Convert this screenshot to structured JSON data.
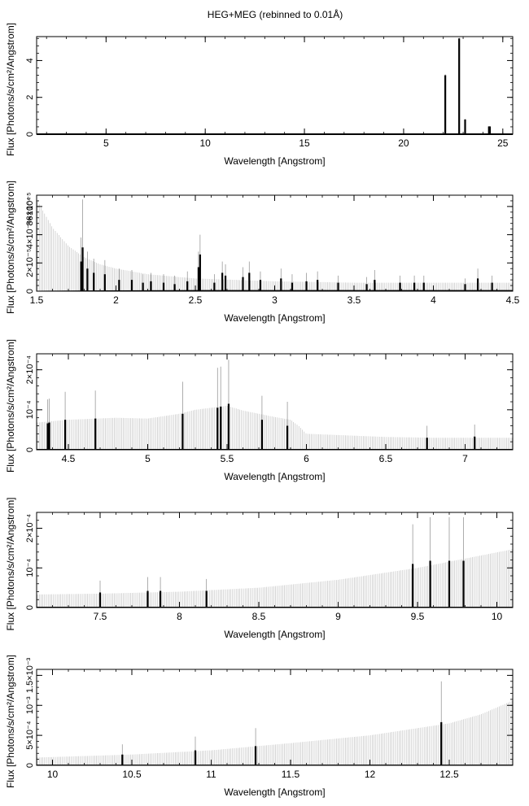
{
  "figure": {
    "title": "HEG+MEG (rebinned to 0.01Å)"
  },
  "chart_data": [
    {
      "type": "line",
      "xlabel": "Wavelength [Angstrom]",
      "ylabel": "Flux [Photons/s/cm²/Angstrom]",
      "xlim": [
        1.5,
        25.5
      ],
      "ylim": [
        0,
        5.3
      ],
      "xticks": [
        5,
        10,
        15,
        20,
        25
      ],
      "xtick_labels": [
        "5",
        "10",
        "15",
        "20",
        "25"
      ],
      "yticks": [
        0,
        2,
        4
      ],
      "ytick_labels": [
        "0",
        "2",
        "4"
      ],
      "continuum": {
        "x": [
          1.5,
          25.5
        ],
        "y": [
          0.0,
          0.0
        ]
      },
      "lines": [
        {
          "x": 22.1,
          "y": 3.2,
          "err": 0.05
        },
        {
          "x": 22.8,
          "y": 5.2,
          "err": 0.05
        },
        {
          "x": 23.1,
          "y": 0.8,
          "err": 0.03
        },
        {
          "x": 24.3,
          "y": 0.42,
          "err": 0.02
        },
        {
          "x": 24.35,
          "y": 0.42,
          "err": 0.02
        }
      ],
      "error_band": false
    },
    {
      "type": "line",
      "xlabel": "Wavelength [Angstrom]",
      "ylabel": "Flux [Photons/s/cm²/Angstrom]",
      "xlim": [
        1.5,
        4.5
      ],
      "ylim": [
        0,
        6.8e-05
      ],
      "xticks": [
        1.5,
        2,
        2.5,
        3,
        3.5,
        4,
        4.5
      ],
      "xtick_labels": [
        "1.5",
        "2",
        "2.5",
        "3",
        "3.5",
        "4",
        "4.5"
      ],
      "yticks": [
        0,
        2e-05,
        4e-05,
        6e-05
      ],
      "ytick_labels": [
        "0",
        "2×10⁻⁵",
        "4×10⁻⁵",
        "6×10⁻⁵"
      ],
      "ytick_label_overlay": "8×10⁻⁴",
      "continuum": {
        "x": [
          1.5,
          1.8,
          2.0,
          2.5,
          3.0,
          3.5,
          4.0,
          4.5
        ],
        "y": [
          0.0,
          2e-07,
          3e-07,
          5e-07,
          5e-07,
          5e-07,
          5e-07,
          5e-07
        ]
      },
      "errorband": {
        "x": [
          1.5,
          1.55,
          1.6,
          1.7,
          1.8,
          1.9,
          2.0,
          2.2,
          2.5,
          3.0,
          3.5,
          4.0,
          4.5
        ],
        "y": [
          6.5e-05,
          5.5e-05,
          4.5e-05,
          3.2e-05,
          2.4e-05,
          1.9e-05,
          1.6e-05,
          1.2e-05,
          9e-06,
          7e-06,
          6e-06,
          6e-06,
          6e-06
        ]
      },
      "lines": [
        {
          "x": 1.78,
          "y": 2.1e-05,
          "err": 1.7e-05
        },
        {
          "x": 1.79,
          "y": 3.1e-05,
          "err": 3.4e-05
        },
        {
          "x": 1.82,
          "y": 1.6e-05,
          "err": 1.2e-05
        },
        {
          "x": 1.86,
          "y": 1.3e-05,
          "err": 1e-05
        },
        {
          "x": 1.93,
          "y": 1.2e-05,
          "err": 1e-05
        },
        {
          "x": 2.02,
          "y": 8e-06,
          "err": 8e-06
        },
        {
          "x": 2.1,
          "y": 8e-06,
          "err": 7e-06
        },
        {
          "x": 2.17,
          "y": 6e-06,
          "err": 6e-06
        },
        {
          "x": 2.22,
          "y": 7e-06,
          "err": 6e-06
        },
        {
          "x": 2.3,
          "y": 6e-06,
          "err": 6e-06
        },
        {
          "x": 2.37,
          "y": 5e-06,
          "err": 6e-06
        },
        {
          "x": 2.45,
          "y": 7e-06,
          "err": 7e-06
        },
        {
          "x": 2.52,
          "y": 1.7e-05,
          "err": 1.1e-05
        },
        {
          "x": 2.53,
          "y": 2.6e-05,
          "err": 1.4e-05
        },
        {
          "x": 2.62,
          "y": 6e-06,
          "err": 6e-06
        },
        {
          "x": 2.67,
          "y": 1.3e-05,
          "err": 8e-06
        },
        {
          "x": 2.69,
          "y": 1.1e-05,
          "err": 8e-06
        },
        {
          "x": 2.8,
          "y": 1e-05,
          "err": 7e-06
        },
        {
          "x": 2.84,
          "y": 1.3e-05,
          "err": 8e-06
        },
        {
          "x": 2.91,
          "y": 8e-06,
          "err": 6e-06
        },
        {
          "x": 3.04,
          "y": 9e-06,
          "err": 7e-06
        },
        {
          "x": 3.11,
          "y": 6e-06,
          "err": 6e-06
        },
        {
          "x": 3.2,
          "y": 7e-06,
          "err": 6e-06
        },
        {
          "x": 3.27,
          "y": 8e-06,
          "err": 6e-06
        },
        {
          "x": 3.4,
          "y": 6e-06,
          "err": 5e-06
        },
        {
          "x": 3.58,
          "y": 5e-06,
          "err": 5e-06
        },
        {
          "x": 3.63,
          "y": 8e-06,
          "err": 7e-06
        },
        {
          "x": 3.79,
          "y": 6e-06,
          "err": 5e-06
        },
        {
          "x": 3.88,
          "y": 6e-06,
          "err": 5e-06
        },
        {
          "x": 3.94,
          "y": 6e-06,
          "err": 5e-06
        },
        {
          "x": 4.2,
          "y": 5e-06,
          "err": 4e-06
        },
        {
          "x": 4.28,
          "y": 9e-06,
          "err": 7e-06
        },
        {
          "x": 4.37,
          "y": 6e-06,
          "err": 5e-06
        }
      ],
      "error_band": true
    },
    {
      "type": "line",
      "xlabel": "Wavelength [Angstrom]",
      "ylabel": "Flux [Photons/s/cm²/Angstrom]",
      "xlim": [
        4.3,
        7.3
      ],
      "ylim": [
        0,
        0.00024
      ],
      "xticks": [
        4.5,
        5,
        5.5,
        6,
        6.5,
        7
      ],
      "xtick_labels": [
        "4.5",
        "5",
        "5.5",
        "6",
        "6.5",
        "7"
      ],
      "yticks": [
        0,
        0.0001,
        0.0002
      ],
      "ytick_labels": [
        "0",
        "10⁻⁴",
        "2×10⁻⁴"
      ],
      "continuum": {
        "x": [
          4.3,
          7.3
        ],
        "y": [
          1e-06,
          1e-06
        ]
      },
      "errorband": {
        "x": [
          4.3,
          4.5,
          4.8,
          5.0,
          5.2,
          5.3,
          5.4,
          5.5,
          5.6,
          5.8,
          5.9,
          5.95,
          6.0,
          6.5,
          6.8,
          7.0,
          7.3
        ],
        "y": [
          6.8e-05,
          7.5e-05,
          8e-05,
          7.8e-05,
          9e-05,
          0.0001,
          0.000105,
          0.00011,
          9.8e-05,
          8.2e-05,
          7.5e-05,
          6e-05,
          4e-05,
          3.2e-05,
          3e-05,
          3e-05,
          3e-05
        ]
      },
      "lines": [
        {
          "x": 4.37,
          "y": 6.6e-05,
          "err": 6e-05
        },
        {
          "x": 4.38,
          "y": 6.8e-05,
          "err": 6e-05
        },
        {
          "x": 4.48,
          "y": 7.5e-05,
          "err": 7e-05
        },
        {
          "x": 4.67,
          "y": 7.8e-05,
          "err": 7e-05
        },
        {
          "x": 5.22,
          "y": 9e-05,
          "err": 8e-05
        },
        {
          "x": 5.44,
          "y": 0.000105,
          "err": 0.0001
        },
        {
          "x": 5.46,
          "y": 0.000108,
          "err": 0.0001
        },
        {
          "x": 5.51,
          "y": 0.000115,
          "err": 0.00011
        },
        {
          "x": 5.72,
          "y": 7.5e-05,
          "err": 6e-05
        },
        {
          "x": 5.88,
          "y": 6e-05,
          "err": 6e-05
        },
        {
          "x": 6.76,
          "y": 3e-05,
          "err": 3e-05
        },
        {
          "x": 7.06,
          "y": 3.3e-05,
          "err": 3e-05
        }
      ],
      "error_band": true
    },
    {
      "type": "line",
      "xlabel": "Wavelength [Angstrom]",
      "ylabel": "Flux [Photons/s/cm²/Angstrom]",
      "xlim": [
        7.1,
        10.1
      ],
      "ylim": [
        0,
        0.00024
      ],
      "xticks": [
        7.5,
        8,
        8.5,
        9,
        9.5,
        10
      ],
      "xtick_labels": [
        "7.5",
        "8",
        "8.5",
        "9",
        "9.5",
        "10"
      ],
      "yticks": [
        0,
        0.0001,
        0.0002
      ],
      "ytick_labels": [
        "0",
        "10⁻⁴",
        "2×10⁻⁴"
      ],
      "continuum": {
        "x": [
          7.1,
          10.1
        ],
        "y": [
          1e-06,
          1e-06
        ]
      },
      "errorband": {
        "x": [
          7.1,
          7.5,
          8.0,
          8.5,
          9.0,
          9.5,
          10.1
        ],
        "y": [
          3.3e-05,
          3.5e-05,
          4e-05,
          5e-05,
          7e-05,
          0.0001,
          0.000147
        ]
      },
      "lines": [
        {
          "x": 7.5,
          "y": 3.8e-05,
          "err": 3e-05
        },
        {
          "x": 7.8,
          "y": 4.2e-05,
          "err": 3.5e-05
        },
        {
          "x": 7.88,
          "y": 4.2e-05,
          "err": 3.5e-05
        },
        {
          "x": 8.17,
          "y": 4.2e-05,
          "err": 3e-05
        },
        {
          "x": 9.47,
          "y": 0.00011,
          "err": 0.0001
        },
        {
          "x": 9.58,
          "y": 0.000118,
          "err": 0.00011
        },
        {
          "x": 9.7,
          "y": 0.000118,
          "err": 0.00011
        },
        {
          "x": 9.79,
          "y": 0.000118,
          "err": 0.00011
        }
      ],
      "error_band": true
    },
    {
      "type": "line",
      "xlabel": "Wavelength [Angstrom]",
      "ylabel": "Flux [Photons/s/cm²/Angstrom]",
      "xlim": [
        9.9,
        12.9
      ],
      "ylim": [
        0,
        0.0016
      ],
      "xticks": [
        10,
        10.5,
        11,
        11.5,
        12,
        12.5
      ],
      "xtick_labels": [
        "10",
        "10.5",
        "11",
        "11.5",
        "12",
        "12.5"
      ],
      "yticks": [
        0,
        0.0005,
        0.001,
        0.0015
      ],
      "ytick_labels": [
        "0",
        "5×10⁻⁴",
        "10⁻³",
        "1.5×10⁻³"
      ],
      "continuum": {
        "x": [
          9.9,
          12.9
        ],
        "y": [
          5e-06,
          5e-06
        ]
      },
      "errorband": {
        "x": [
          9.9,
          10.5,
          11.0,
          11.5,
          12.0,
          12.5,
          12.7,
          12.9
        ],
        "y": [
          0.00013,
          0.00018,
          0.00025,
          0.00037,
          0.0005,
          0.0007,
          0.00085,
          0.00108
        ]
      },
      "lines": [
        {
          "x": 10.44,
          "y": 0.00018,
          "err": 0.00017
        },
        {
          "x": 10.9,
          "y": 0.00025,
          "err": 0.00023
        },
        {
          "x": 11.28,
          "y": 0.00032,
          "err": 0.0003
        },
        {
          "x": 12.45,
          "y": 0.00072,
          "err": 0.00068
        }
      ],
      "error_band": true
    }
  ]
}
